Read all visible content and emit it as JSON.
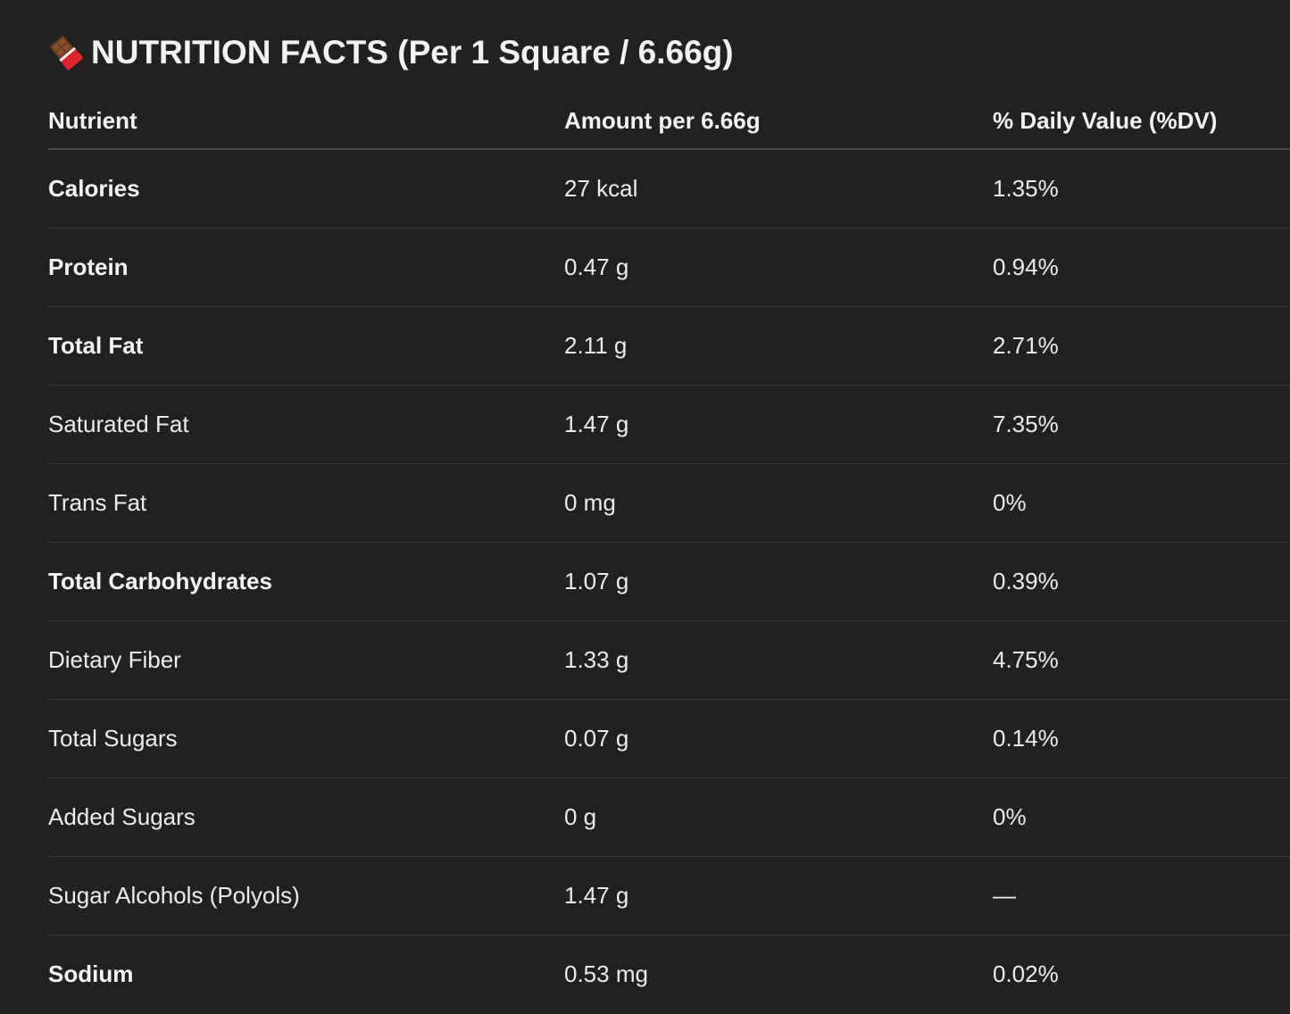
{
  "header": {
    "icon": "chocolate-bar-icon",
    "title": "NUTRITION FACTS (Per 1 Square / 6.66g)"
  },
  "table": {
    "columns": [
      "Nutrient",
      "Amount per 6.66g",
      "% Daily Value (%DV)"
    ],
    "rows": [
      {
        "nutrient": "Calories",
        "amount": "27 kcal",
        "dv": "1.35%",
        "bold": true
      },
      {
        "nutrient": "Protein",
        "amount": "0.47 g",
        "dv": "0.94%",
        "bold": true
      },
      {
        "nutrient": "Total Fat",
        "amount": "2.11 g",
        "dv": "2.71%",
        "bold": true
      },
      {
        "nutrient": "Saturated Fat",
        "amount": "1.47 g",
        "dv": "7.35%",
        "bold": false
      },
      {
        "nutrient": "Trans Fat",
        "amount": "0 mg",
        "dv": "0%",
        "bold": false
      },
      {
        "nutrient": "Total Carbohydrates",
        "amount": "1.07 g",
        "dv": "0.39%",
        "bold": true
      },
      {
        "nutrient": "Dietary Fiber",
        "amount": "1.33 g",
        "dv": "4.75%",
        "bold": false
      },
      {
        "nutrient": "Total Sugars",
        "amount": "0.07 g",
        "dv": "0.14%",
        "bold": false
      },
      {
        "nutrient": "Added Sugars",
        "amount": "0 g",
        "dv": "0%",
        "bold": false
      },
      {
        "nutrient": "Sugar Alcohols (Polyols)",
        "amount": "1.47 g",
        "dv": "—",
        "bold": false
      },
      {
        "nutrient": "Sodium",
        "amount": "0.53 mg",
        "dv": "0.02%",
        "bold": true
      }
    ]
  }
}
